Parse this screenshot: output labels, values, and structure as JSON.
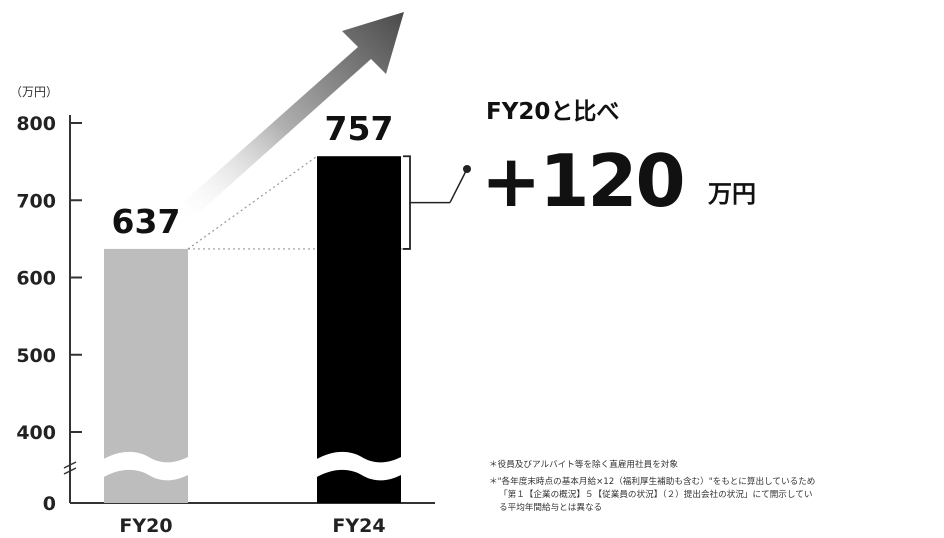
{
  "chart_data": {
    "type": "bar",
    "unit_label": "（万円）",
    "categories": [
      "FY20",
      "FY24"
    ],
    "values": [
      637,
      757
    ],
    "value_labels": [
      "637",
      "757"
    ],
    "bar_colors": [
      "#bdbdbd",
      "#000000"
    ],
    "y_ticks": [
      0,
      400,
      500,
      600,
      700,
      800
    ],
    "y_tick_labels": [
      "0",
      "400",
      "500",
      "600",
      "700",
      "800"
    ],
    "ylim": [
      0,
      800
    ],
    "broken_axis": true,
    "axis_break_between": [
      0,
      400
    ],
    "grid": false,
    "arrow_color": "#505050"
  },
  "callout": {
    "compare_label": "FY20と比べ",
    "difference": "+120",
    "difference_unit": "万円"
  },
  "notes": [
    "＊役員及びアルバイト等を除く直雇用社員を対象",
    "＊\"各年度末時点の基本月給×12（福利厚生補助も含む）\"をもとに算出しているため",
    "「第１【企業の概況】５【従業員の状況】（２）提出会社の状況」にて開示してい",
    "る平均年間給与とは異なる"
  ]
}
